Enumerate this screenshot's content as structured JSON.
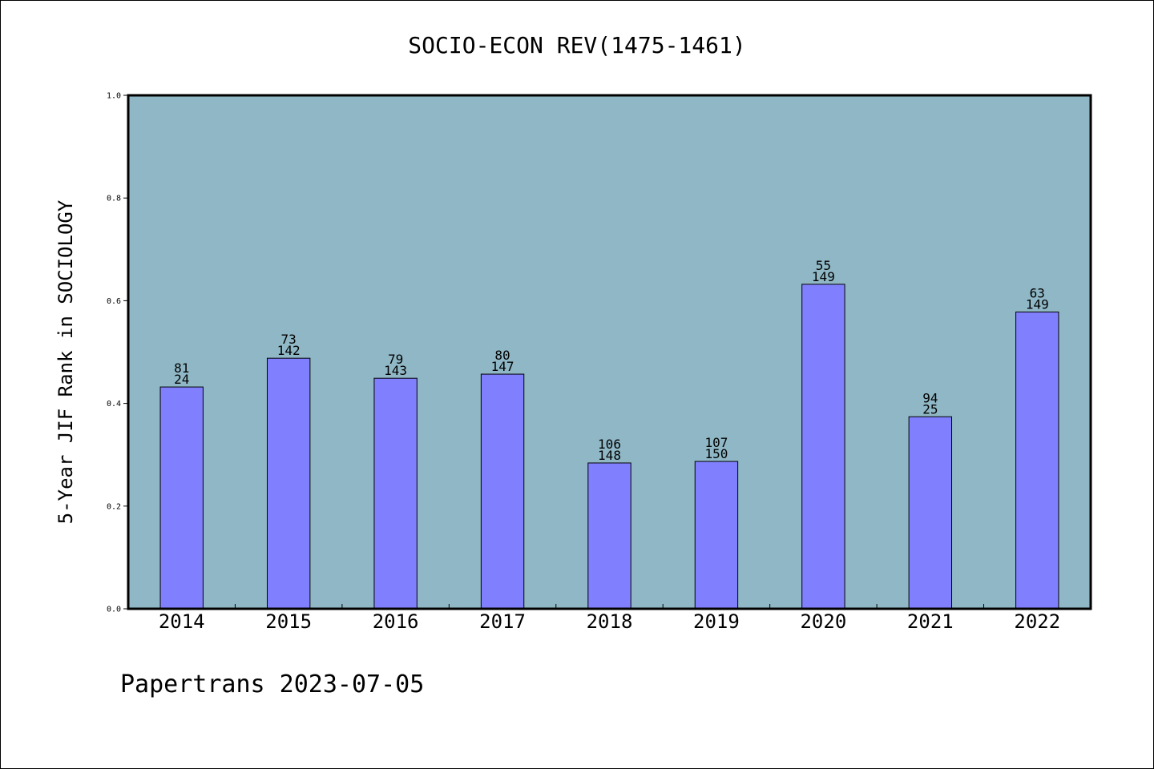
{
  "chart_data": {
    "type": "bar",
    "title": "SOCIO-ECON REV(1475-1461)",
    "ylabel": "5-Year JIF Rank in SOCIOLOGY",
    "xlabel": "",
    "ylim": [
      0,
      1.0
    ],
    "yticks": [
      "0.0",
      "0.2",
      "0.4",
      "0.6",
      "0.8",
      "1.0"
    ],
    "categories": [
      "2014",
      "2015",
      "2016",
      "2017",
      "2018",
      "2019",
      "2020",
      "2021",
      "2022"
    ],
    "values": [
      0.432,
      0.488,
      0.449,
      0.457,
      0.284,
      0.287,
      0.632,
      0.374,
      0.578
    ],
    "rank": [
      "81",
      "73",
      "79",
      "80",
      "106",
      "107",
      "55",
      "94",
      "63"
    ],
    "total": [
      "24",
      "142",
      "143",
      "147",
      "148",
      "150",
      "149",
      "25",
      "149"
    ],
    "colors": {
      "plot_background": "#8fb7c5",
      "bar": "#8080ff",
      "bar_edge": "#000000"
    },
    "grid": false
  },
  "footer": "Papertrans 2023-07-05"
}
